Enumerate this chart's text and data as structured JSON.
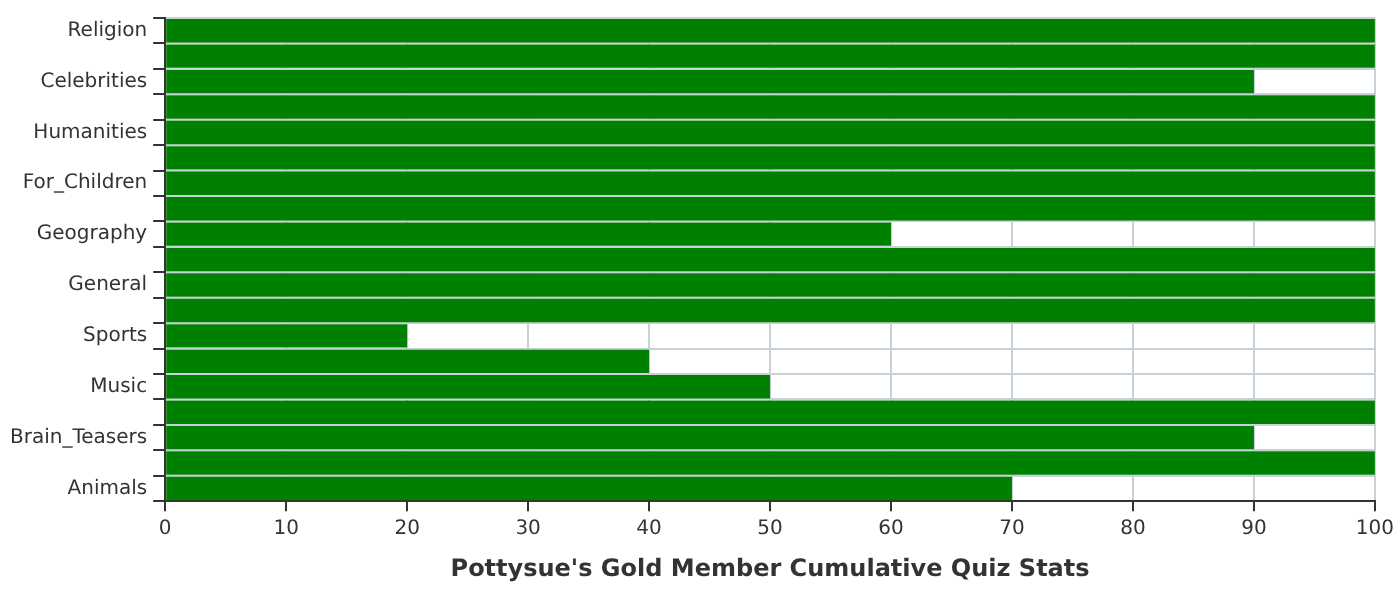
{
  "chart_data": {
    "type": "bar",
    "orientation": "horizontal",
    "xlabel": "Pottysue's Gold Member Cumulative Quiz Stats",
    "categories": [
      "Religion",
      null,
      "Celebrities",
      null,
      "Humanities",
      null,
      "For_Children",
      null,
      "Geography",
      null,
      "General",
      null,
      "Sports",
      null,
      "Music",
      null,
      "Brain_Teasers",
      null,
      "Animals"
    ],
    "values": [
      100,
      100,
      90,
      100,
      100,
      100,
      100,
      100,
      60,
      100,
      100,
      100,
      20,
      40,
      50,
      100,
      90,
      100,
      70
    ],
    "color": "#008000",
    "xlim": [
      0,
      100
    ],
    "xticks": [
      0,
      10,
      20,
      30,
      40,
      50,
      60,
      70,
      80,
      90,
      100
    ],
    "grid": true,
    "legend": false
  }
}
